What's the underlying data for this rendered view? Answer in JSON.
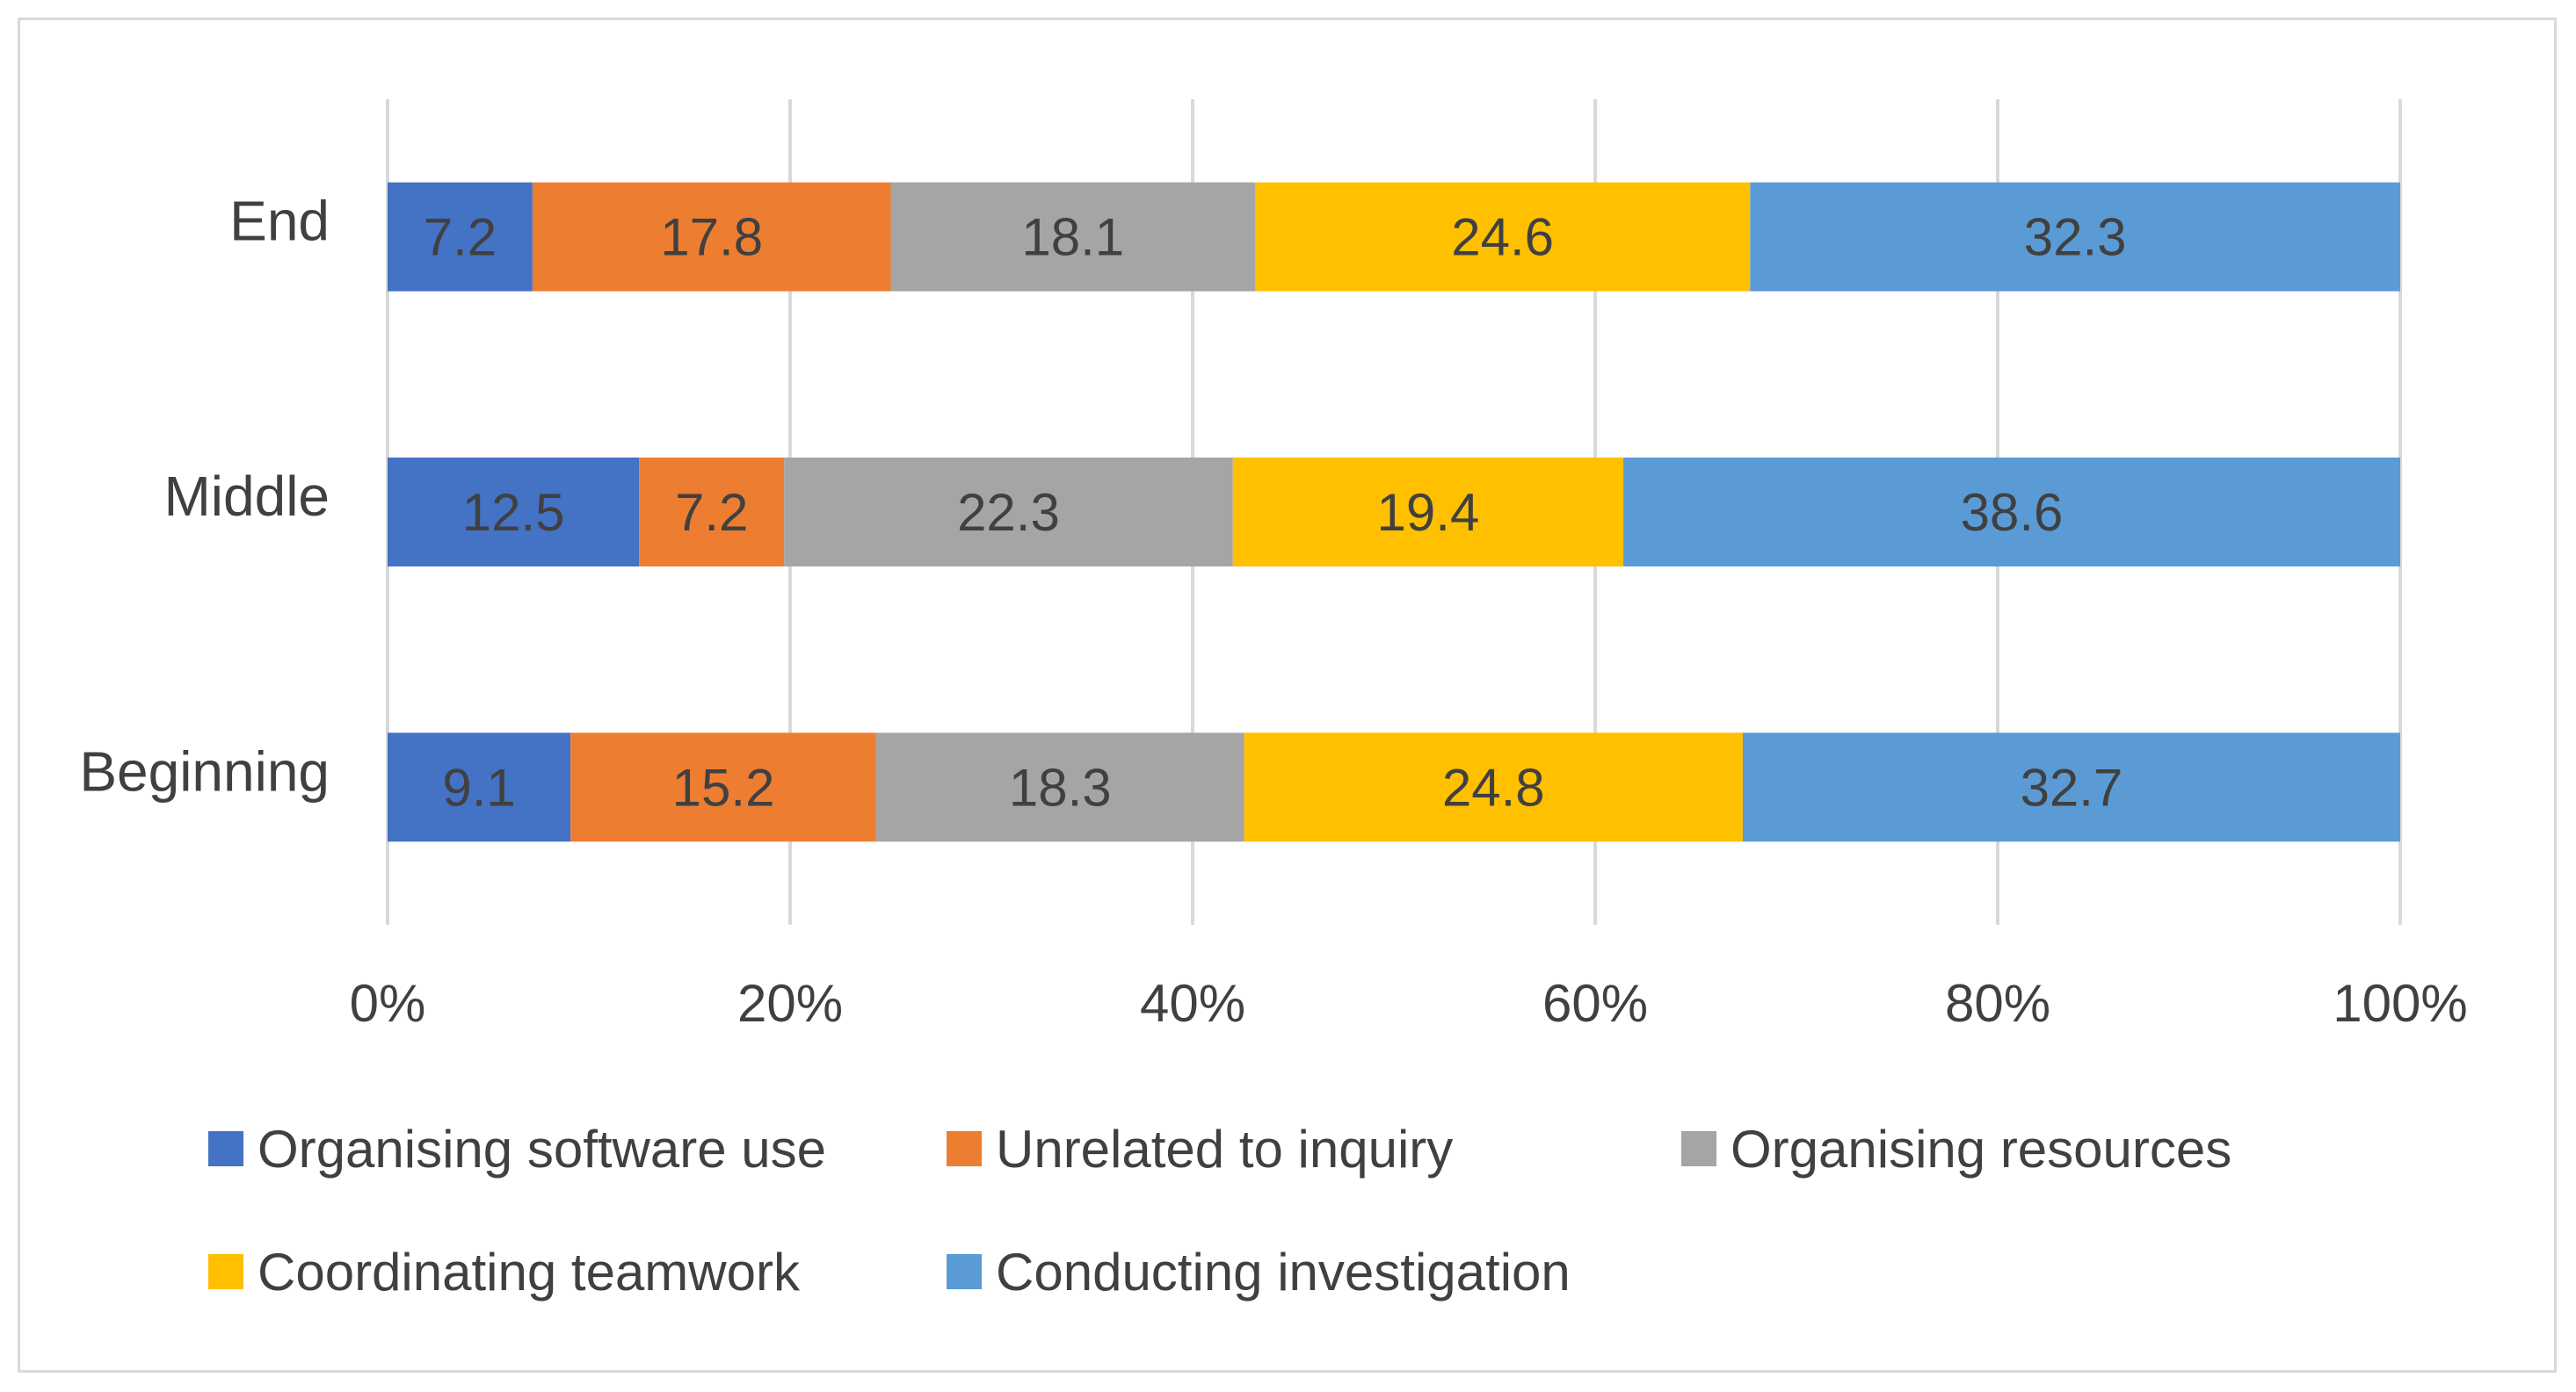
{
  "chart_data": {
    "type": "bar",
    "orientation": "horizontal",
    "stacked": "percent",
    "title": "",
    "xlabel": "",
    "ylabel": "",
    "categories": [
      "End",
      "Middle",
      "Beginning"
    ],
    "series": [
      {
        "name": "Organising software use",
        "color": "#4472C4",
        "values": [
          7.2,
          12.5,
          9.1
        ],
        "labels": [
          "7.2",
          "12.5",
          "9.1"
        ]
      },
      {
        "name": "Unrelated to inquiry",
        "color": "#ED7D31",
        "values": [
          17.8,
          7.2,
          15.2
        ],
        "labels": [
          "17.8",
          "7.2",
          "15.2"
        ]
      },
      {
        "name": "Organising resources",
        "color": "#A5A5A5",
        "values": [
          18.1,
          22.3,
          18.3
        ],
        "labels": [
          "18.1",
          "22.3",
          "18.3"
        ]
      },
      {
        "name": "Coordinating teamwork",
        "color": "#FFC000",
        "values": [
          24.6,
          19.4,
          24.8
        ],
        "labels": [
          "24.6",
          "19.4",
          "24.8"
        ]
      },
      {
        "name": "Conducting investigation",
        "color": "#5B9BD5",
        "values": [
          32.3,
          38.6,
          32.7
        ],
        "labels": [
          "32.3",
          "38.6",
          "32.7"
        ]
      }
    ],
    "xlim": [
      0,
      100
    ],
    "xticks": [
      0,
      20,
      40,
      60,
      80,
      100
    ],
    "xtick_labels": [
      "0%",
      "20%",
      "40%",
      "60%",
      "80%",
      "100%"
    ],
    "grid": true,
    "legend_position": "bottom"
  }
}
